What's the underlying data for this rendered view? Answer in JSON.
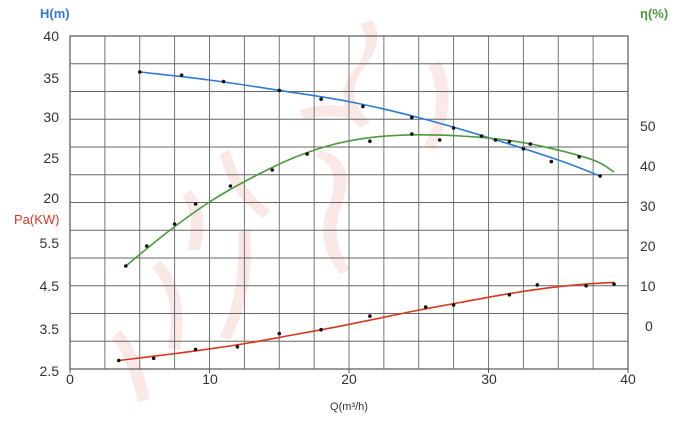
{
  "chart_data": {
    "type": "line",
    "grid": true,
    "colors": {
      "head": "#2f7bd1",
      "efficiency": "#4a9a3a",
      "power": "#d9361e",
      "points": "#111111",
      "grid": "#666666"
    },
    "x_axis": {
      "label": "Q(m³/h)",
      "range": [
        0,
        40
      ],
      "ticks": [
        "0",
        "10",
        "20",
        "30",
        "40"
      ]
    },
    "y_axes": {
      "head": {
        "label": "H(m)",
        "side": "left-top",
        "range": [
          20,
          40
        ],
        "ticks": [
          "40",
          "35",
          "30",
          "25",
          "20"
        ]
      },
      "power": {
        "label": "Pa(KW)",
        "side": "left-bottom",
        "range": [
          2.5,
          5.5
        ],
        "ticks": [
          "5.5",
          "4.5",
          "3.5",
          "2.5"
        ]
      },
      "efficiency": {
        "label": "η(%)",
        "side": "right",
        "range": [
          -10,
          70
        ],
        "ticks": [
          "50",
          "40",
          "30",
          "20",
          "10",
          "0"
        ]
      }
    },
    "series": [
      {
        "key": "head",
        "axis": "head",
        "curve": {
          "x": [
            5,
            10,
            15,
            20,
            25,
            30,
            35,
            38
          ],
          "y": [
            35.5,
            34.5,
            33.2,
            31.8,
            29.8,
            27.3,
            24.5,
            22.5
          ]
        },
        "points": {
          "x": [
            5,
            8,
            11,
            15,
            18,
            21,
            24.5,
            27.5,
            30.5,
            32.5,
            34.5,
            38
          ],
          "y": [
            35.5,
            35.1,
            34.3,
            33.2,
            32.1,
            31.2,
            29.8,
            28.5,
            27.0,
            25.9,
            24.3,
            22.5
          ]
        }
      },
      {
        "key": "efficiency",
        "axis": "efficiency",
        "curve": {
          "x": [
            4,
            7,
            10,
            13,
            16,
            19,
            22,
            25,
            28,
            31,
            34,
            37.5,
            39
          ],
          "y": [
            15,
            23.5,
            31,
            37,
            42,
            45.5,
            47.3,
            47.8,
            47.5,
            46.6,
            44.8,
            41.5,
            38.5
          ]
        },
        "points": {
          "x": [
            4,
            5.5,
            7.5,
            9,
            11.5,
            14.5,
            17,
            21.5,
            24.5,
            26.5,
            29.5,
            31.5,
            33,
            36.5
          ],
          "y": [
            15,
            20,
            25.5,
            30.5,
            35,
            39,
            43,
            46.2,
            48,
            46.5,
            47.5,
            46.1,
            45.5,
            42.3
          ]
        }
      },
      {
        "key": "power",
        "axis": "power",
        "curve": {
          "x": [
            3.5,
            7,
            10,
            13,
            16,
            19,
            22,
            25,
            28,
            31,
            34,
            37,
            39
          ],
          "y": [
            2.7,
            2.84,
            2.97,
            3.12,
            3.3,
            3.48,
            3.68,
            3.88,
            4.06,
            4.24,
            4.39,
            4.49,
            4.53
          ]
        },
        "points": {
          "x": [
            3.5,
            6,
            9,
            12,
            15,
            18,
            21.5,
            25.5,
            27.5,
            31.5,
            33.5,
            37,
            39
          ],
          "y": [
            2.7,
            2.75,
            2.96,
            3.02,
            3.33,
            3.42,
            3.74,
            3.95,
            4.0,
            4.24,
            4.47,
            4.45,
            4.49
          ]
        }
      }
    ]
  }
}
